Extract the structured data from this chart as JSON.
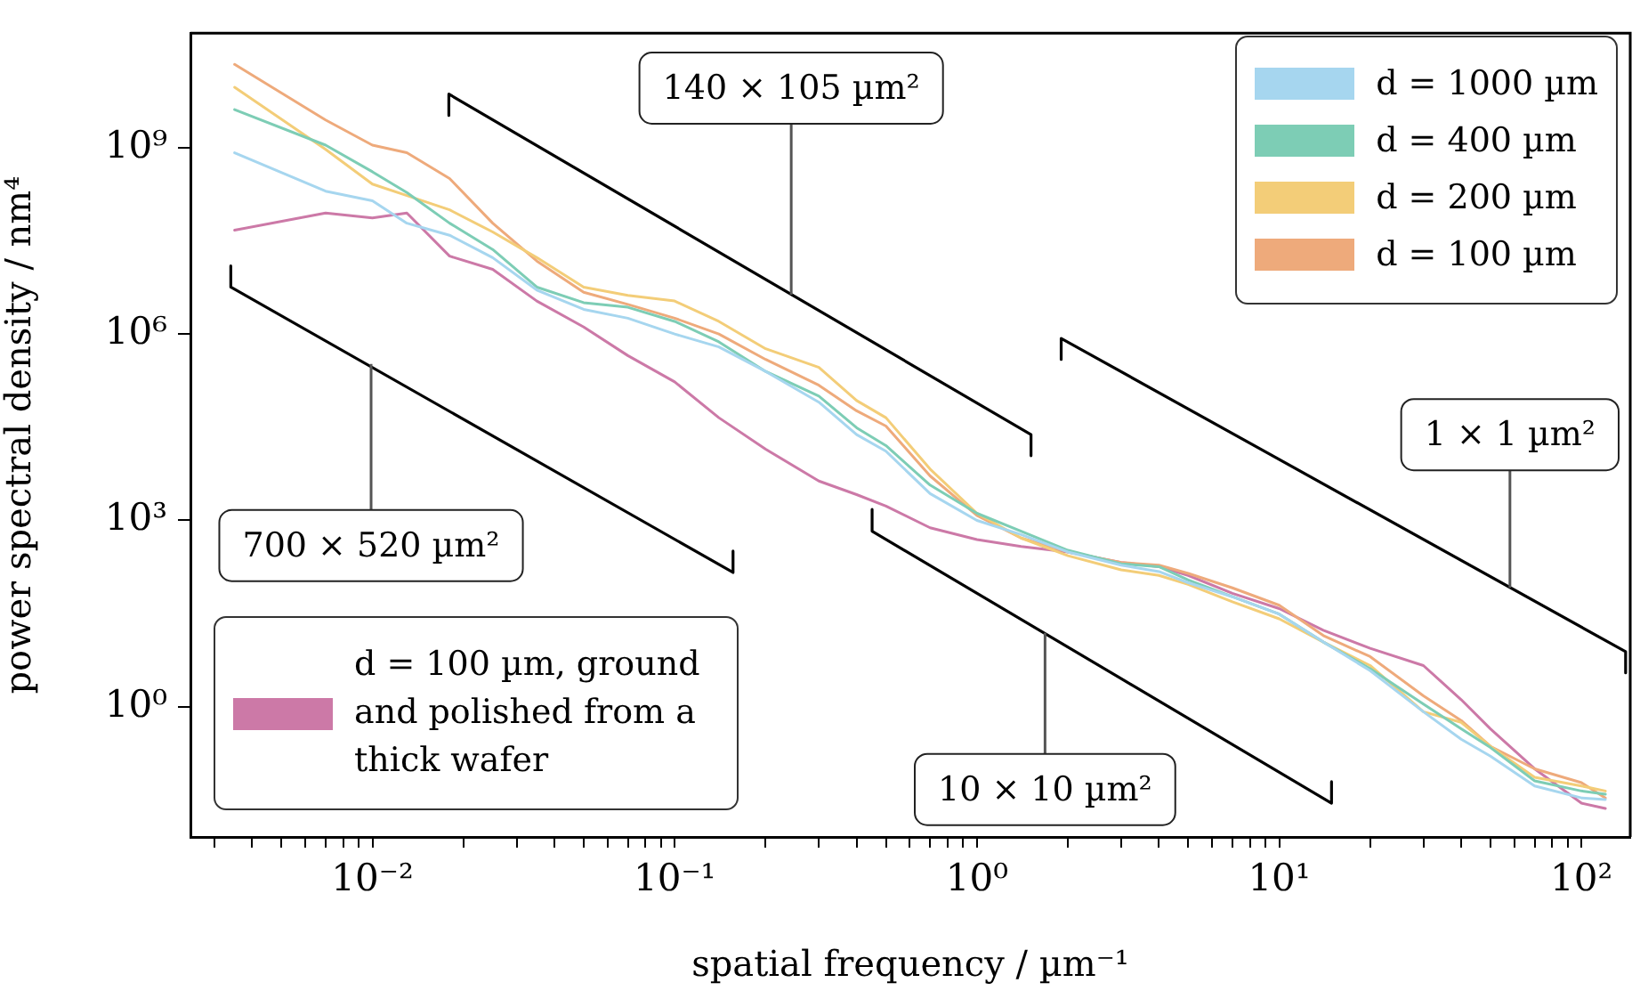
{
  "chart_data": {
    "type": "line",
    "xlabel": "spatial frequency / µm⁻¹",
    "ylabel": "power spectral density / nm⁴",
    "log": "xy",
    "legend": [
      "top right",
      "bottom left"
    ],
    "xlim": [
      0.0025,
      145
    ],
    "ylim": [
      0.008,
      70000000000.0
    ],
    "xticks": [
      {
        "value": 0.003,
        "label": null
      },
      {
        "value": 0.004,
        "label": null
      },
      {
        "value": 0.005,
        "label": null
      },
      {
        "value": 0.006,
        "label": null
      },
      {
        "value": 0.007,
        "label": null
      },
      {
        "value": 0.008,
        "label": null
      },
      {
        "value": 0.009,
        "label": null
      },
      {
        "value": 0.01,
        "label": "10⁻²"
      },
      {
        "value": 0.02,
        "label": null
      },
      {
        "value": 0.03,
        "label": null
      },
      {
        "value": 0.04,
        "label": null
      },
      {
        "value": 0.05,
        "label": null
      },
      {
        "value": 0.06,
        "label": null
      },
      {
        "value": 0.07,
        "label": null
      },
      {
        "value": 0.08,
        "label": null
      },
      {
        "value": 0.09,
        "label": null
      },
      {
        "value": 0.1,
        "label": "10⁻¹"
      },
      {
        "value": 0.2,
        "label": null
      },
      {
        "value": 0.3,
        "label": null
      },
      {
        "value": 0.4,
        "label": null
      },
      {
        "value": 0.5,
        "label": null
      },
      {
        "value": 0.6,
        "label": null
      },
      {
        "value": 0.7,
        "label": null
      },
      {
        "value": 0.8,
        "label": null
      },
      {
        "value": 0.9,
        "label": null
      },
      {
        "value": 1,
        "label": "10⁰"
      },
      {
        "value": 2,
        "label": null
      },
      {
        "value": 3,
        "label": null
      },
      {
        "value": 4,
        "label": null
      },
      {
        "value": 5,
        "label": null
      },
      {
        "value": 6,
        "label": null
      },
      {
        "value": 7,
        "label": null
      },
      {
        "value": 8,
        "label": null
      },
      {
        "value": 9,
        "label": null
      },
      {
        "value": 10,
        "label": "10¹"
      },
      {
        "value": 20,
        "label": null
      },
      {
        "value": 30,
        "label": null
      },
      {
        "value": 40,
        "label": null
      },
      {
        "value": 50,
        "label": null
      },
      {
        "value": 60,
        "label": null
      },
      {
        "value": 70,
        "label": null
      },
      {
        "value": 80,
        "label": null
      },
      {
        "value": 90,
        "label": null
      },
      {
        "value": 100,
        "label": "10²"
      }
    ],
    "yticks": [
      {
        "value": 1,
        "label": "10⁰"
      },
      {
        "value": 1000,
        "label": "10³"
      },
      {
        "value": 1000000,
        "label": "10⁶"
      },
      {
        "value": 1000000000,
        "label": "10⁹"
      }
    ],
    "x": [
      0.0035,
      0.007,
      0.01,
      0.013,
      0.018,
      0.025,
      0.035,
      0.05,
      0.07,
      0.1,
      0.14,
      0.2,
      0.3,
      0.4,
      0.5,
      0.7,
      1,
      1.4,
      2,
      3,
      4,
      5,
      7,
      10,
      14,
      20,
      30,
      40,
      50,
      70,
      100,
      120
    ],
    "series": [
      {
        "name": "d = 1000 µm",
        "color": "#a6d6ef",
        "values": [
          830000000.0,
          200000000.0,
          140000000.0,
          61000000.0,
          39000000.0,
          17000000.0,
          5100000.0,
          2500000.0,
          1800000.0,
          1000000.0,
          620000.0,
          250000.0,
          80000.0,
          24000.0,
          13000.0,
          2700.0,
          1000.0,
          590,
          310,
          190,
          150,
          99,
          59,
          31,
          11,
          3.8,
          0.83,
          0.3,
          0.16,
          0.053,
          0.034,
          0.032
        ]
      },
      {
        "name": "d = 400 µm",
        "color": "#7dcdb5",
        "values": [
          4100000000.0,
          1100000000.0,
          410000000.0,
          190000000.0,
          61000000.0,
          23000000.0,
          5700000.0,
          3200000.0,
          2700000.0,
          1600000.0,
          750000.0,
          250000.0,
          100000.0,
          31000.0,
          16000.0,
          3700.0,
          1300.0,
          670,
          330,
          200,
          180,
          110,
          59,
          31,
          11,
          4.1,
          1.1,
          0.44,
          0.22,
          0.064,
          0.044,
          0.039
        ]
      },
      {
        "name": "d = 200 µm",
        "color": "#f3cd78",
        "values": [
          9400000000.0,
          940000000.0,
          260000000.0,
          170000000.0,
          100000000.0,
          44000000.0,
          17000000.0,
          5700000.0,
          4200000.0,
          3400000.0,
          1600000.0,
          580000.0,
          290000.0,
          85000.0,
          45000.0,
          6700.0,
          1300.0,
          520,
          270,
          160,
          130,
          93,
          49,
          26,
          11,
          4.6,
          0.83,
          0.56,
          0.23,
          0.073,
          0.053,
          0.044
        ]
      },
      {
        "name": "d = 100 µm",
        "color": "#eeaa7b",
        "values": [
          22000000000.0,
          2800000000.0,
          1100000000.0,
          830000000.0,
          320000000.0,
          61000000.0,
          15000000.0,
          4700000.0,
          3000000.0,
          1800000.0,
          1000000.0,
          390000.0,
          150000.0,
          58000.0,
          33000.0,
          5200.0,
          1200.0,
          520,
          310,
          210,
          190,
          140,
          82,
          43,
          14,
          6.4,
          1.5,
          0.6,
          0.23,
          0.1,
          0.06,
          0.034
        ]
      },
      {
        "name": "d = 100 µm, ground and polished from a thick wafer",
        "color": "#cc79a7",
        "values": [
          47000000.0,
          89000000.0,
          74000000.0,
          89000000.0,
          18000000.0,
          11000000.0,
          3400000.0,
          1300000.0,
          450000.0,
          170000.0,
          45000.0,
          14000.0,
          4300.0,
          2600.0,
          1700.0,
          760,
          490,
          380,
          310,
          210,
          180,
          130,
          67,
          38,
          17,
          8.7,
          4.6,
          1.3,
          0.44,
          0.1,
          0.028,
          0.023
        ]
      },
      {
        "type": "line",
        "color": "#000000",
        "x": [
          0.0034,
          0.0034,
          0.156,
          0.156
        ],
        "values": [
          12500000.0,
          5700000.0,
          145,
          320
        ]
      },
      {
        "type": "line",
        "color": "#000000",
        "x": [
          0.0179,
          0.0179,
          1.51,
          1.51
        ],
        "values": [
          3300000000.0,
          7300000000.0,
          24000.0,
          11000.0
        ]
      },
      {
        "type": "line",
        "color": "#000000",
        "x": [
          0.45,
          0.45,
          14.9,
          14.9
        ],
        "values": [
          1500,
          670,
          0.028,
          0.062
        ]
      },
      {
        "type": "line",
        "color": "#000000",
        "x": [
          1.9,
          1.9,
          140,
          140
        ],
        "values": [
          390000.0,
          850000.0,
          7.7,
          3.5
        ]
      }
    ],
    "annotations": [
      {
        "text": "700 × 520 µm²",
        "x": 0.0099,
        "y": 330000.0
      },
      {
        "text": "140 × 105 µm²",
        "x": 0.243,
        "y": 4300000.0
      },
      {
        "text": "10 × 10 µm²",
        "x": 1.68,
        "y": 15.5
      },
      {
        "text": "1 × 1 µm²",
        "x": 58,
        "y": 82
      }
    ]
  }
}
